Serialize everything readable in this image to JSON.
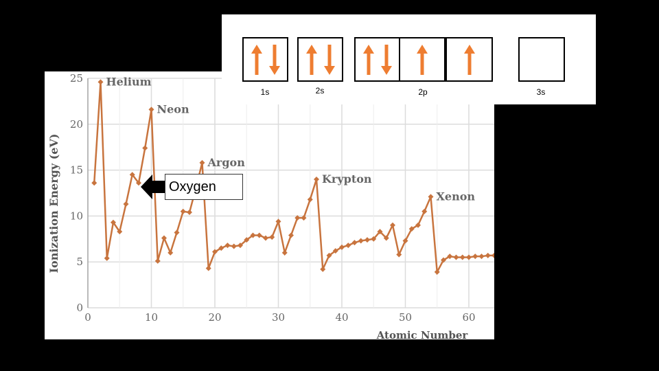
{
  "chart_data": {
    "type": "line",
    "xlabel": "Atomic Number",
    "ylabel": "Ionization Energy (eV)",
    "xlim": [
      0,
      64
    ],
    "ylim": [
      0,
      25
    ],
    "x_ticks": [
      0,
      10,
      20,
      30,
      40,
      50,
      60
    ],
    "y_ticks": [
      0,
      5,
      10,
      15,
      20,
      25
    ],
    "grid": true,
    "series": [
      {
        "color": "#c8743e",
        "x": [
          1,
          2,
          3,
          4,
          5,
          6,
          7,
          8,
          9,
          10,
          11,
          12,
          13,
          14,
          15,
          16,
          17,
          18,
          19,
          20,
          21,
          22,
          23,
          24,
          25,
          26,
          27,
          28,
          29,
          30,
          31,
          32,
          33,
          34,
          35,
          36,
          37,
          38,
          39,
          40,
          41,
          42,
          43,
          44,
          45,
          46,
          47,
          48,
          49,
          50,
          51,
          52,
          53,
          54,
          55,
          56,
          57,
          58,
          59,
          60,
          61,
          62,
          63,
          64
        ],
        "values": [
          13.6,
          24.6,
          5.4,
          9.3,
          8.3,
          11.3,
          14.5,
          13.6,
          17.4,
          21.6,
          5.1,
          7.6,
          6.0,
          8.2,
          10.5,
          10.4,
          13.0,
          15.8,
          4.3,
          6.1,
          6.5,
          6.8,
          6.7,
          6.8,
          7.4,
          7.9,
          7.9,
          7.6,
          7.7,
          9.4,
          6.0,
          7.9,
          9.8,
          9.8,
          11.8,
          14.0,
          4.2,
          5.7,
          6.2,
          6.6,
          6.8,
          7.1,
          7.3,
          7.4,
          7.5,
          8.3,
          7.6,
          9.0,
          5.8,
          7.3,
          8.6,
          9.0,
          10.5,
          12.1,
          3.9,
          5.2,
          5.6,
          5.5,
          5.5,
          5.5,
          5.6,
          5.6,
          5.7,
          5.7
        ]
      }
    ],
    "annotations": [
      {
        "text": "Helium",
        "x": 2,
        "y": 24.6
      },
      {
        "text": "Neon",
        "x": 10,
        "y": 21.6
      },
      {
        "text": "Argon",
        "x": 18,
        "y": 15.8
      },
      {
        "text": "Krypton",
        "x": 36,
        "y": 14.0
      },
      {
        "text": "Xenon",
        "x": 54,
        "y": 12.1
      }
    ]
  },
  "callout": {
    "label": "Oxygen"
  },
  "orbitals": [
    {
      "label": "1s",
      "boxes": [
        [
          "up",
          "down"
        ]
      ]
    },
    {
      "label": "2s",
      "boxes": [
        [
          "up",
          "down"
        ]
      ]
    },
    {
      "label": "2p",
      "boxes": [
        [
          "up",
          "down"
        ],
        [
          "up"
        ],
        [
          "up"
        ]
      ]
    },
    {
      "label": "3s",
      "boxes": [
        []
      ]
    }
  ],
  "colors": {
    "line": "#c8743e",
    "arrow": "#ee7d31",
    "grid": "#dcdcdc",
    "axis_text": "#666666"
  }
}
